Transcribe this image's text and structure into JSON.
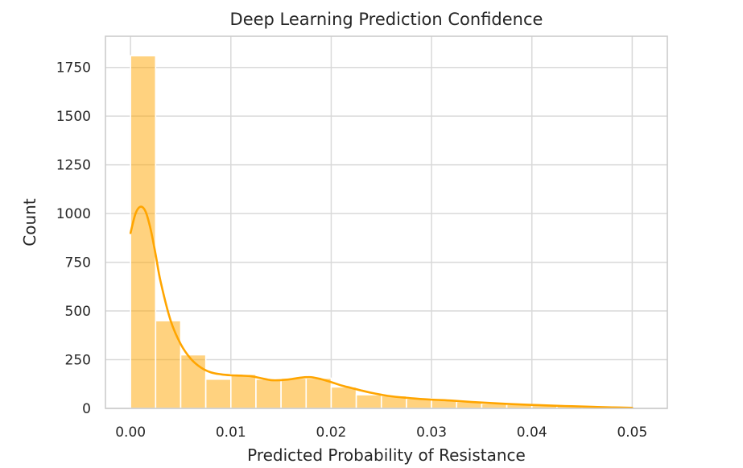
{
  "chart_data": {
    "type": "bar",
    "subtype": "histogram-with-kde",
    "title": "Deep Learning Prediction Confidence",
    "xlabel": "Predicted Probability of Resistance",
    "ylabel": "Count",
    "xlim": [
      -0.0025,
      0.0535
    ],
    "ylim": [
      0,
      1910
    ],
    "xticks": [
      0.0,
      0.01,
      0.02,
      0.03,
      0.04,
      0.05
    ],
    "xtick_labels": [
      "0.00",
      "0.01",
      "0.02",
      "0.03",
      "0.04",
      "0.05"
    ],
    "yticks": [
      0,
      250,
      500,
      750,
      1000,
      1250,
      1500,
      1750
    ],
    "ytick_labels": [
      "0",
      "250",
      "500",
      "750",
      "1000",
      "1250",
      "1500",
      "1750"
    ],
    "grid": true,
    "bar_color": "#ffa500",
    "bar_opacity": 0.5,
    "kde_color": "#ffa500",
    "bins": [
      {
        "x0": 0.0,
        "x1": 0.0025,
        "count": 1810
      },
      {
        "x0": 0.0025,
        "x1": 0.005,
        "count": 450
      },
      {
        "x0": 0.005,
        "x1": 0.0075,
        "count": 275
      },
      {
        "x0": 0.0075,
        "x1": 0.01,
        "count": 150
      },
      {
        "x0": 0.01,
        "x1": 0.0125,
        "count": 175
      },
      {
        "x0": 0.0125,
        "x1": 0.015,
        "count": 150
      },
      {
        "x0": 0.015,
        "x1": 0.0175,
        "count": 155
      },
      {
        "x0": 0.0175,
        "x1": 0.02,
        "count": 155
      },
      {
        "x0": 0.02,
        "x1": 0.0225,
        "count": 110
      },
      {
        "x0": 0.0225,
        "x1": 0.025,
        "count": 70
      },
      {
        "x0": 0.025,
        "x1": 0.0275,
        "count": 65
      },
      {
        "x0": 0.0275,
        "x1": 0.03,
        "count": 50
      },
      {
        "x0": 0.03,
        "x1": 0.0325,
        "count": 45
      },
      {
        "x0": 0.0325,
        "x1": 0.035,
        "count": 35
      },
      {
        "x0": 0.035,
        "x1": 0.0375,
        "count": 25
      },
      {
        "x0": 0.0375,
        "x1": 0.04,
        "count": 20
      },
      {
        "x0": 0.04,
        "x1": 0.0425,
        "count": 15
      },
      {
        "x0": 0.0425,
        "x1": 0.045,
        "count": 12
      },
      {
        "x0": 0.045,
        "x1": 0.0475,
        "count": 8
      },
      {
        "x0": 0.0475,
        "x1": 0.05,
        "count": 5
      }
    ],
    "kde": {
      "x": [
        0.0,
        0.0005,
        0.001,
        0.0015,
        0.002,
        0.0025,
        0.003,
        0.004,
        0.005,
        0.006,
        0.007,
        0.008,
        0.009,
        0.01,
        0.011,
        0.012,
        0.013,
        0.014,
        0.015,
        0.016,
        0.017,
        0.018,
        0.019,
        0.02,
        0.021,
        0.022,
        0.023,
        0.024,
        0.025,
        0.026,
        0.028,
        0.03,
        0.032,
        0.034,
        0.036,
        0.038,
        0.04,
        0.042,
        0.044,
        0.046,
        0.048,
        0.05
      ],
      "y": [
        900,
        1000,
        1035,
        1010,
        920,
        790,
        650,
        450,
        330,
        255,
        210,
        185,
        175,
        170,
        168,
        165,
        155,
        145,
        145,
        150,
        158,
        160,
        150,
        135,
        118,
        105,
        92,
        80,
        70,
        62,
        52,
        45,
        40,
        33,
        27,
        22,
        18,
        14,
        11,
        8,
        5,
        3
      ]
    }
  }
}
